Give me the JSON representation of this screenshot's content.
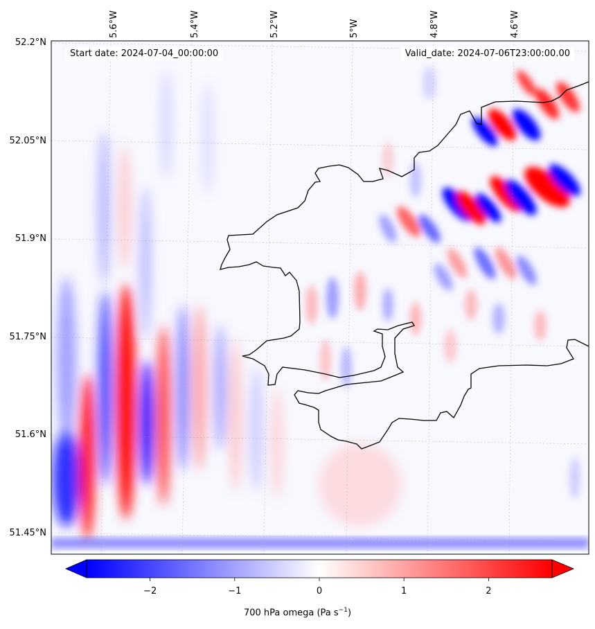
{
  "map": {
    "variable_label": "700 hPa omega (Pa s",
    "unit_exponent": "−1",
    "variable_label_close": ")",
    "start_date_text": "Start date: 2024-07-04_00:00:00",
    "valid_date_text": "Valid_date: 2024-07-06T23:00:00.00",
    "lon_ticks": [
      "5.6°W",
      "5.4°W",
      "5.2°W",
      "5°W",
      "4.8°W",
      "4.6°W"
    ],
    "lat_ticks": [
      "52.2°N",
      "52.05°N",
      "51.9°N",
      "51.75°N",
      "51.6°N",
      "51.45°N"
    ],
    "colorbar": {
      "min": -2.75,
      "max": 2.75,
      "ticks": [
        "−2",
        "−1",
        "0",
        "1",
        "2"
      ],
      "tick_values": [
        -2,
        -1,
        0,
        1,
        2
      ],
      "colormap": "bwr",
      "extend": "both",
      "colors": {
        "low": "#0000ff",
        "mid": "#ffffff",
        "high": "#ff0000"
      }
    },
    "coastline_color": "#000000",
    "gridline_style": "dotted grey"
  }
}
